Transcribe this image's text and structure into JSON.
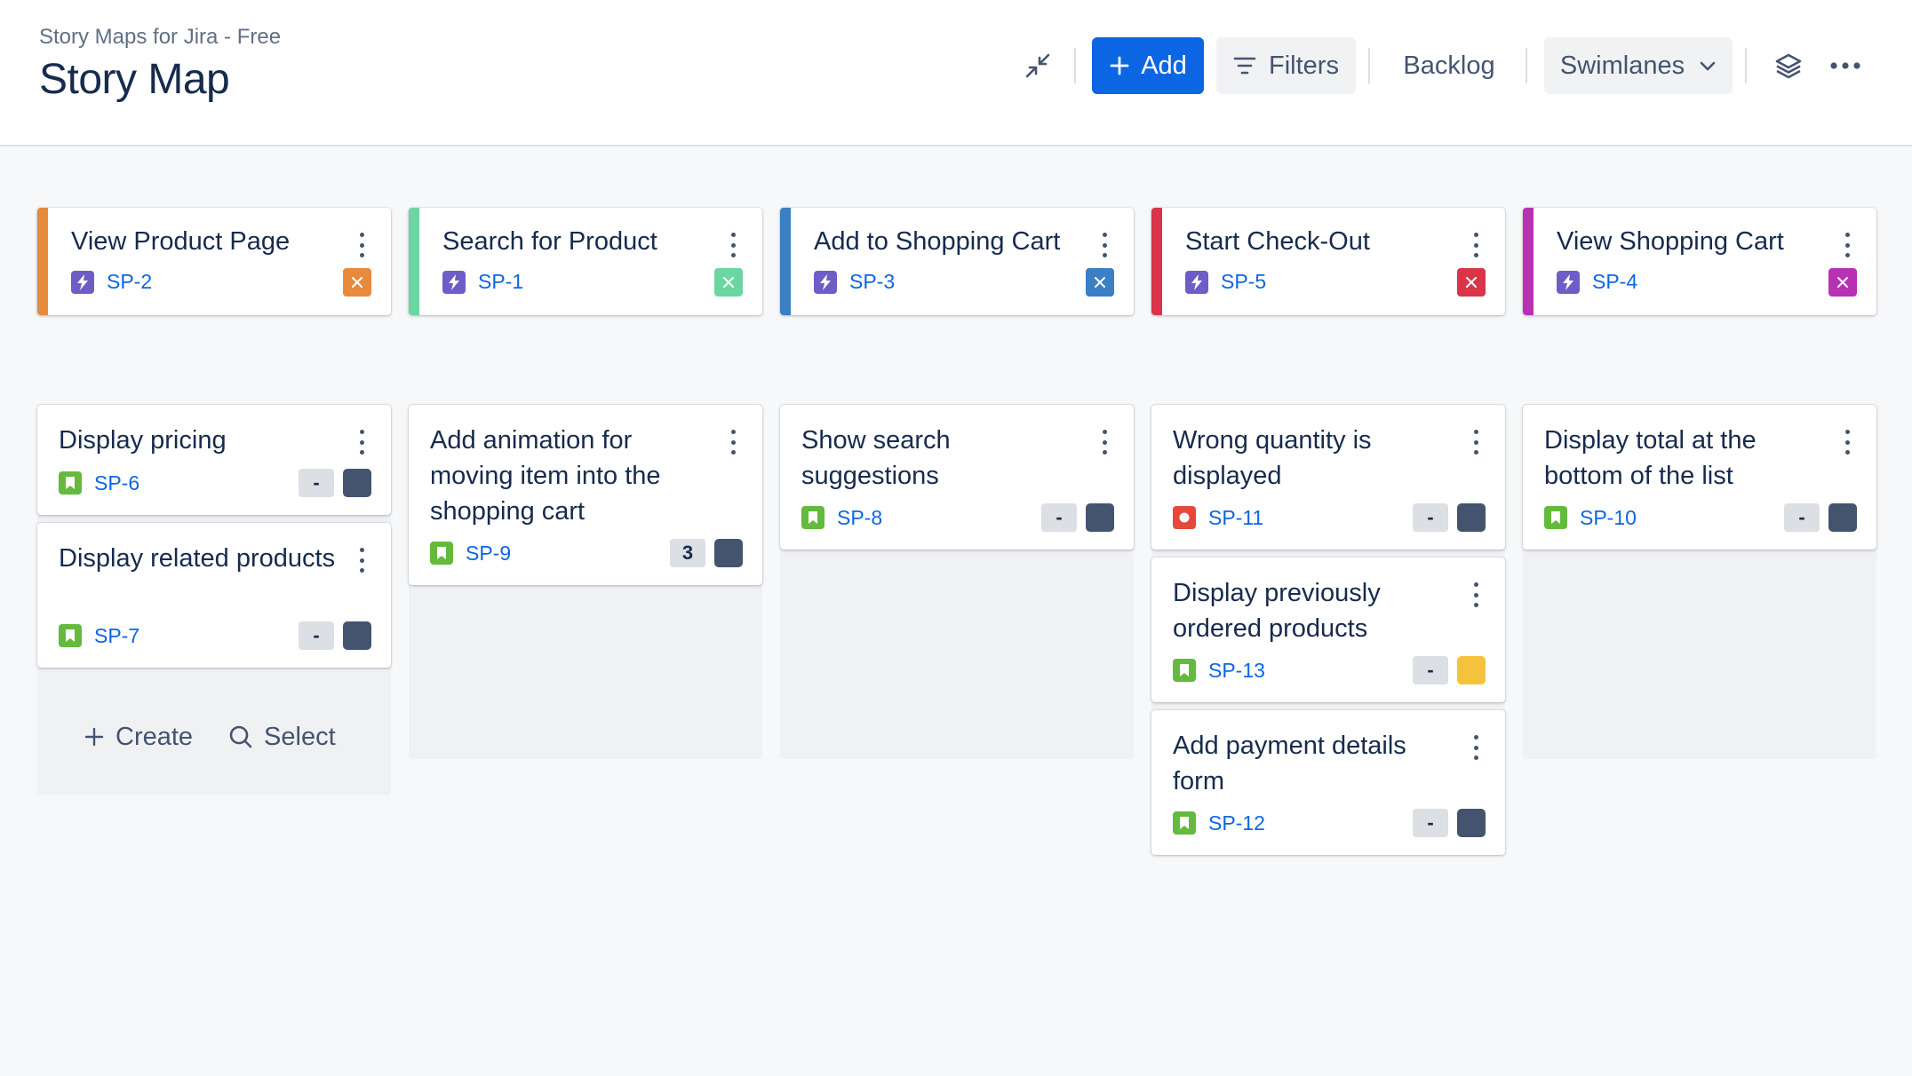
{
  "header": {
    "app_name": "Story Maps for Jira - Free",
    "title": "Story Map"
  },
  "toolbar": {
    "add_label": "Add",
    "filters_label": "Filters",
    "backlog_label": "Backlog",
    "swimlanes_label": "Swimlanes"
  },
  "colors": {
    "primary": "#0c66e4",
    "epic_icon": "#6e5dc6",
    "story_icon": "#63ba3c",
    "bug_icon": "#e5493a",
    "status_dark": "#44546f",
    "status_yellow": "#f5c33b"
  },
  "epics": [
    {
      "title": "View Product Page",
      "key": "SP-2",
      "color": "#e78a3e"
    },
    {
      "title": "Search for Product",
      "key": "SP-1",
      "color": "#6bd6a1"
    },
    {
      "title": "Add to Shopping Cart",
      "key": "SP-3",
      "color": "#3b7fc4"
    },
    {
      "title": "Start Check-Out",
      "key": "SP-5",
      "color": "#d9344a"
    },
    {
      "title": "View Shopping Cart",
      "key": "SP-4",
      "color": "#b731b3"
    }
  ],
  "cards": {
    "c1a": {
      "title": "Display pricing",
      "key": "SP-6",
      "estimate": "-"
    },
    "c1b": {
      "title": "Display related products",
      "key": "SP-7",
      "estimate": "-"
    },
    "c2a": {
      "title": "Add animation for moving item into the shopping cart",
      "key": "SP-9",
      "estimate": "3"
    },
    "c3a": {
      "title": "Show search suggestions",
      "key": "SP-8",
      "estimate": "-"
    },
    "c4a": {
      "title": "Wrong quantity is displayed",
      "key": "SP-11",
      "estimate": "-"
    },
    "c4b": {
      "title": "Display previously ordered products",
      "key": "SP-13",
      "estimate": "-"
    },
    "c4c": {
      "title": "Add payment details form",
      "key": "SP-12",
      "estimate": "-"
    },
    "c5a": {
      "title": "Display total at the bottom of the list",
      "key": "SP-10",
      "estimate": "-"
    }
  },
  "actions": {
    "create_label": "Create",
    "select_label": "Select"
  }
}
